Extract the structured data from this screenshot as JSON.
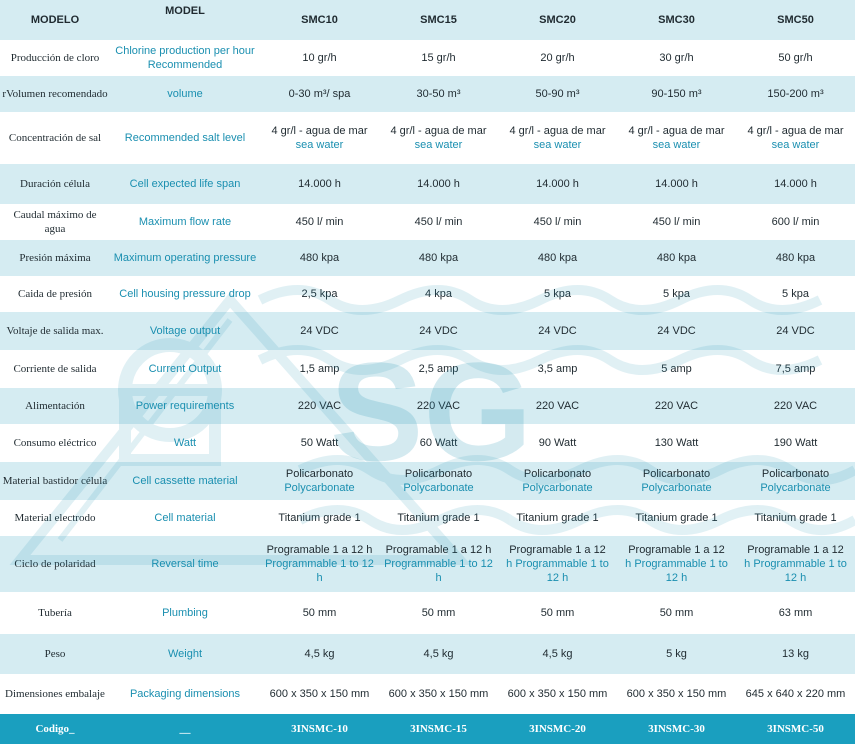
{
  "header": {
    "col_es": "MODELO",
    "col_en": "MODEL",
    "models": [
      "SMC10",
      "SMC15",
      "SMC20",
      "SMC30",
      "SMC50"
    ]
  },
  "rows": [
    {
      "es": "Producción de cloro",
      "en": "Chlorine production per hour Recommended",
      "values": [
        "10 gr/h",
        "15 gr/h",
        "20 gr/h",
        "30 gr/h",
        "50 gr/h"
      ]
    },
    {
      "es": "rVolumen recomendado",
      "en": "volume",
      "values": [
        "0-30 m³/  spa",
        "30-50   m³",
        "50-90   m³",
        "90-150 m³",
        "150-200   m³"
      ]
    },
    {
      "es": "Concentración de sal",
      "en": "Recommended salt level",
      "values": [
        "4 gr/l - agua de mar",
        "4 gr/l - agua de mar",
        "4 gr/l - agua de mar",
        "4 gr/l - agua de mar",
        "4 gr/l - agua de mar"
      ],
      "values_en": [
        "sea water",
        "sea  water",
        "sea water",
        "sea water",
        "sea water"
      ]
    },
    {
      "es": "Duración célula",
      "en": "Cell expected life span",
      "values": [
        "14.000   h",
        "14.000   h",
        "14.000   h",
        "14.000   h",
        "14.000   h"
      ]
    },
    {
      "es": "Caudal máximo de agua",
      "en": "Maximum flow rate",
      "values": [
        "450 l/  min",
        "450 l/  min",
        "450 l/  min",
        "450 l/  min",
        "600 l/  min"
      ]
    },
    {
      "es": "Presión máxima",
      "en": "Maximum operating pressure",
      "values": [
        "480  kpa",
        "480  kpa",
        "480  kpa",
        "480  kpa",
        "480  kpa"
      ]
    },
    {
      "es": "Caida de presión",
      "en": "Cell housing pressure drop",
      "values": [
        "2,5   kpa",
        "4     kpa",
        "5     kpa",
        "5     kpa",
        "5     kpa"
      ]
    },
    {
      "es": "Voltaje de salida max.",
      "en": "Voltage output",
      "values": [
        "24  VDC",
        "24  VDC",
        "24  VDC",
        "24  VDC",
        "24  VDC"
      ]
    },
    {
      "es": "Corriente de salida",
      "en": "Current Output",
      "values": [
        "1,5  amp",
        "2,5    amp",
        "3,5   amp",
        "5    amp",
        "7,5  amp"
      ]
    },
    {
      "es": "Alimentación",
      "en": "Power requirements",
      "values": [
        "220  VAC",
        "220   VAC",
        "220   VAC",
        "220  VAC",
        "220  VAC"
      ]
    },
    {
      "es": "Consumo eléctrico",
      "en": "Watt",
      "values": [
        "50  Watt",
        "60  Watt",
        "90  Watt",
        "130   Watt",
        "190   Watt"
      ]
    },
    {
      "es": "Material bastidor célula",
      "en": "Cell cassette material",
      "values": [
        "Policarbonato",
        "Policarbonato",
        "Policarbonato",
        "Policarbonato",
        "Policarbonato"
      ],
      "values_en": [
        "Polycarbonate",
        "Polycarbonate",
        "Polycarbonate",
        "Polycarbonate",
        "Polycarbonate"
      ]
    },
    {
      "es": "Material electrodo",
      "en": "Cell material",
      "values": [
        "Titanium grade 1",
        "Titanium grade 1",
        "Titanium grade 1",
        "Titanium grade 1",
        "Titanium grade 1"
      ]
    },
    {
      "es": "Ciclo de polaridad",
      "en": "Reversal time",
      "values": [
        "Programable 1 a 12 h",
        "Programable 1 a 12 h",
        "Programable 1 a 12",
        "Programable 1 a 12",
        "Programable 1 a 12"
      ],
      "values_en": [
        "Programmable 1 to 12 h",
        "Programmable 1 to 12 h",
        "h Programmable 1 to 12 h",
        "h Programmable 1 to 12 h",
        "h Programmable 1 to 12 h"
      ]
    },
    {
      "es": "Tubería",
      "en": "Plumbing",
      "values": [
        "50 mm",
        "50 mm",
        "50 mm",
        "50 mm",
        "63 mm"
      ]
    },
    {
      "es": "Peso",
      "en": "Weight",
      "values": [
        "4,5 kg",
        "4,5 kg",
        "4,5 kg",
        "5 kg",
        "13 kg"
      ]
    },
    {
      "es": "Dimensiones embalaje",
      "en": "Packaging dimensions",
      "values": [
        "600 x 350 x 150 mm",
        "600 x 350 x 150  mm",
        "600 x 350 x 150  mm",
        "600 x 350 x 150 mm",
        "645 x 640 x 220 mm"
      ]
    }
  ],
  "footer": {
    "label": "Codigo_",
    "dash": "__",
    "codes": [
      "3INSMC-10",
      "3INSMC-15",
      "3INSMC-20",
      "3INSMC-30",
      "3INSMC-50"
    ]
  },
  "watermark": {
    "logo_text": "SG",
    "color": "#1a8fb0"
  },
  "colors": {
    "band": "#d5ecf2",
    "accent": "#1a8fb0",
    "footer": "#1a9fbf"
  }
}
